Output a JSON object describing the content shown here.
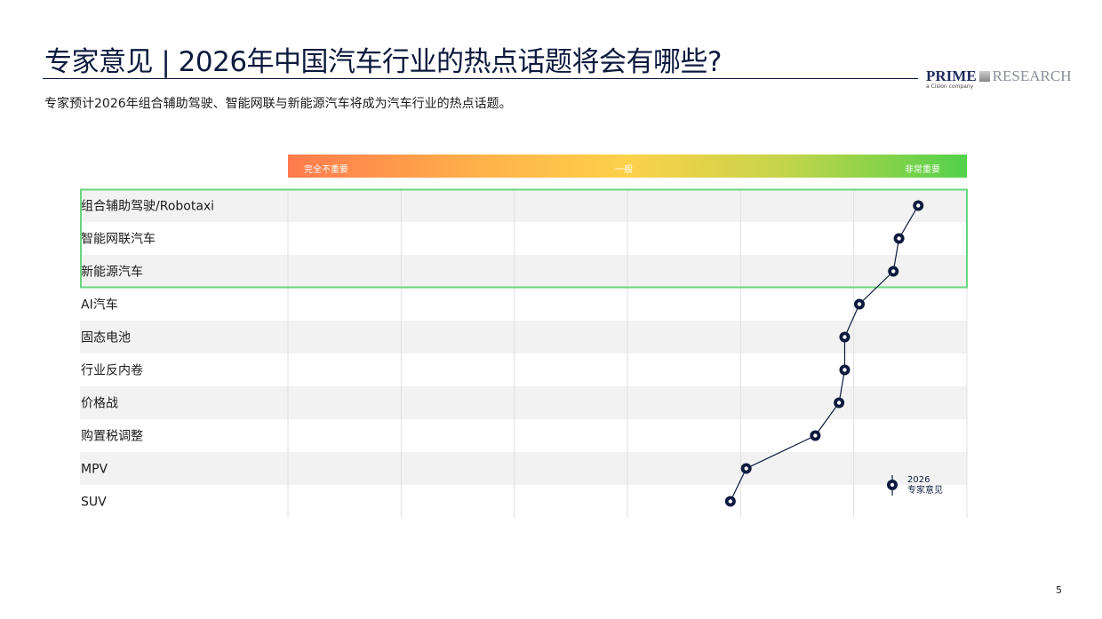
{
  "header": {
    "title": "专家意见 | 2026年中国汽车行业的热点话题将会有哪些?",
    "subtitle": "专家预计2026年组合辅助驾驶、智能网联与新能源汽车将成为汽车行业的热点话题。",
    "logo": {
      "main_left": "PRIME",
      "main_right": "RESEARCH",
      "sub": "a Cision company"
    }
  },
  "page_number": "5",
  "chart_data": {
    "type": "scatter",
    "orientation": "horizontal dot plot with connecting line",
    "scale_labels": {
      "low": "完全不重要",
      "mid": "一般",
      "high": "非常重要"
    },
    "xlim": [
      1,
      7
    ],
    "grid": true,
    "categories": [
      "组合辅助驾驶/Robotaxi",
      "智能网联汽车",
      "新能源汽车",
      "AI汽车",
      "固态电池",
      "行业反内卷",
      "价格战",
      "购置税调整",
      "MPV",
      "SUV"
    ],
    "series": [
      {
        "name": "2026 专家意见",
        "values": [
          6.57,
          6.4,
          6.35,
          6.05,
          5.92,
          5.92,
          5.87,
          5.66,
          5.05,
          4.91
        ]
      }
    ],
    "legend": {
      "line1": "2026",
      "line2": "专家意见",
      "placement": "bottom-right"
    },
    "highlighted_categories": [
      "组合辅助驾驶/Robotaxi",
      "智能网联汽车",
      "新能源汽车"
    ],
    "colors": {
      "marker": "#0d1a3d",
      "highlight_box": "#6ad67f",
      "row_shade": "#f2f2f2",
      "grid": "#e0e0e0"
    }
  }
}
